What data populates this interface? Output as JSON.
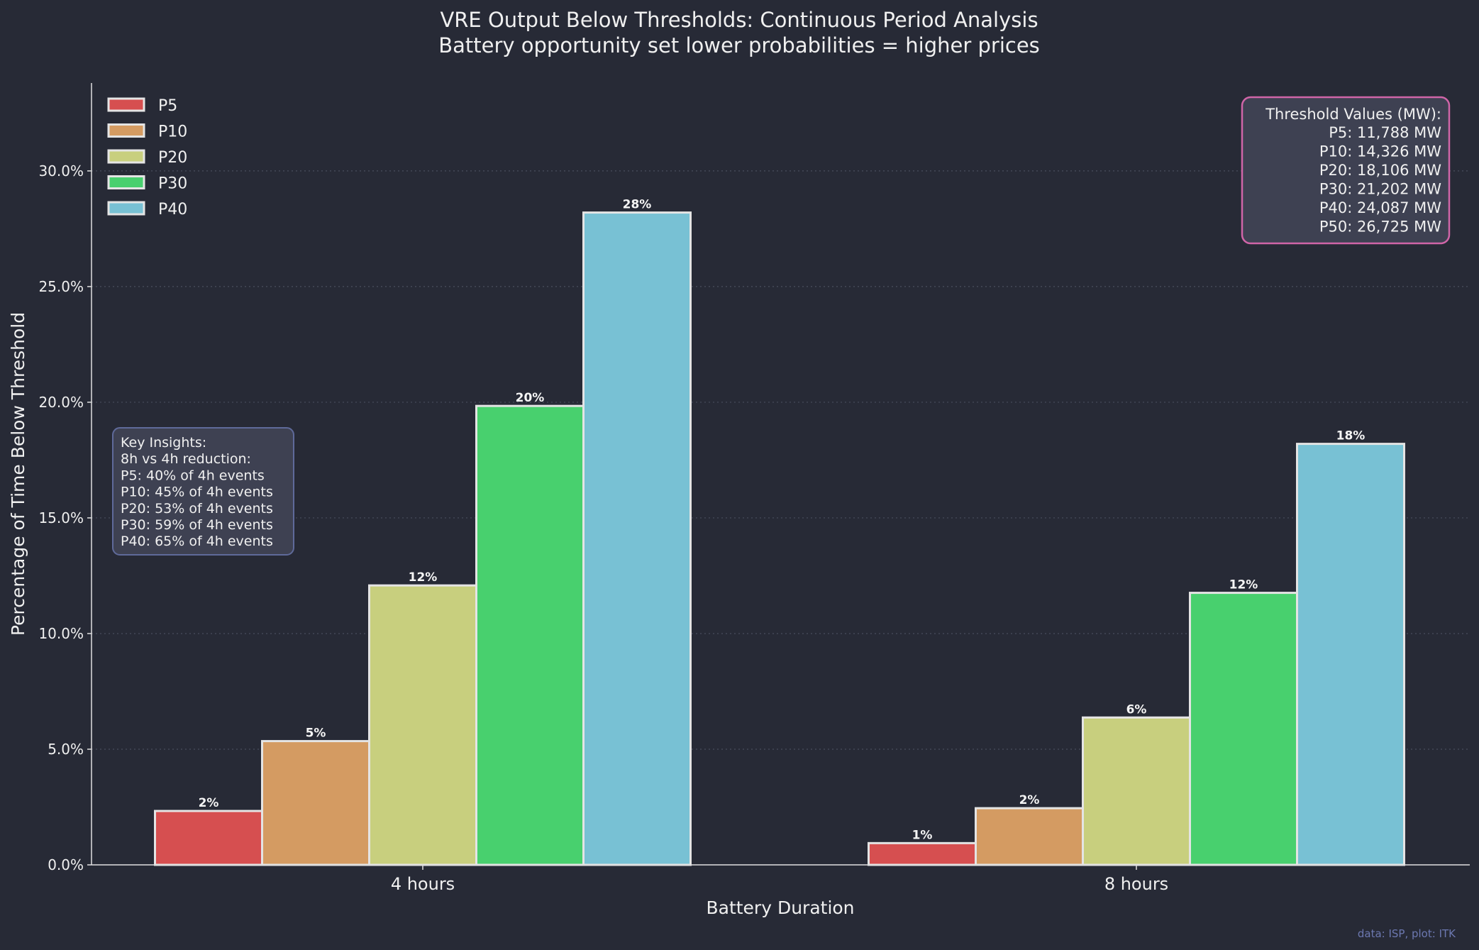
{
  "chart_data": {
    "type": "bar",
    "title": "VRE Output Below Thresholds: Continuous Period Analysis",
    "subtitle": "Battery opportunity set lower probabilities = higher prices",
    "xlabel": "Battery Duration",
    "ylabel": "Percentage of Time Below Threshold",
    "categories": [
      "4 hours",
      "8 hours"
    ],
    "ylim": [
      0,
      33.8
    ],
    "yticks": [
      0,
      5,
      10,
      15,
      20,
      25,
      30
    ],
    "ytick_labels": [
      "0.0%",
      "5.0%",
      "10.0%",
      "15.0%",
      "20.0%",
      "25.0%",
      "30.0%"
    ],
    "grid": "y-dotted",
    "legend_position": "top-left",
    "series": [
      {
        "name": "P5",
        "color": "#d64f50",
        "values": [
          2.33,
          0.94
        ],
        "labels": [
          "2%",
          "1%"
        ]
      },
      {
        "name": "P10",
        "color": "#d49b62",
        "values": [
          5.35,
          2.45
        ],
        "labels": [
          "5%",
          "2%"
        ]
      },
      {
        "name": "P20",
        "color": "#c8cf7e",
        "values": [
          12.08,
          6.37
        ],
        "labels": [
          "12%",
          "6%"
        ]
      },
      {
        "name": "P30",
        "color": "#48d06e",
        "values": [
          19.84,
          11.76
        ],
        "labels": [
          "20%",
          "12%"
        ]
      },
      {
        "name": "P40",
        "color": "#78c1d4",
        "values": [
          28.2,
          18.2
        ],
        "labels": [
          "28%",
          "18%"
        ]
      }
    ],
    "annotations": {
      "thresholds": {
        "title": "Threshold Values (MW):",
        "lines": [
          "P5:  11,788 MW",
          "P10: 14,326 MW",
          "P20: 18,106 MW",
          "P30: 21,202 MW",
          "P40: 24,087 MW",
          "P50: 26,725 MW"
        ]
      },
      "insights": {
        "lines": [
          "Key Insights:",
          "8h vs 4h reduction:",
          "P5:  40% of 4h events",
          "P10: 45% of 4h events",
          "P20: 53% of 4h events",
          "P30: 59% of 4h events",
          "P40: 65% of 4h events"
        ]
      }
    },
    "credit": "data: ISP, plot: ITK"
  }
}
